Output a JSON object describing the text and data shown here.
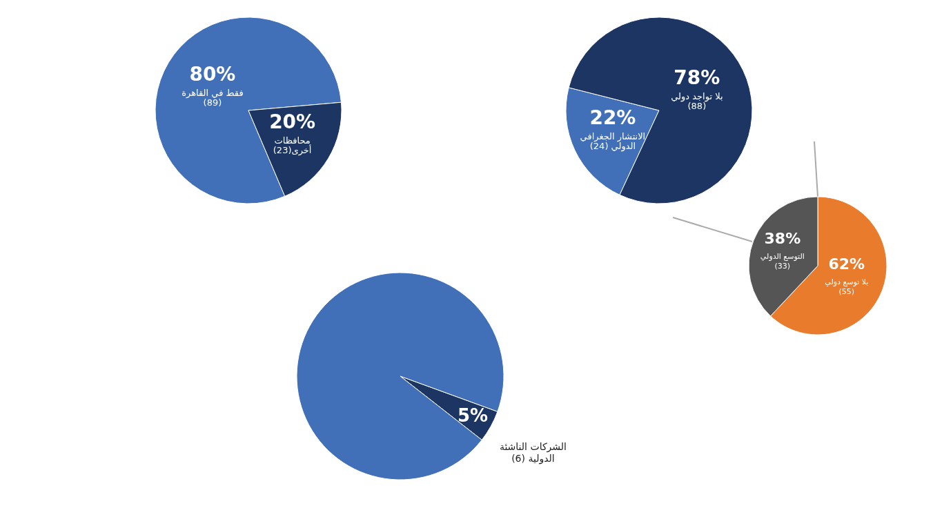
{
  "chart_data": [
    {
      "type": "pie",
      "categories": [
        "فقط في القاهرة (89)",
        "محافظات أخرى(23)"
      ],
      "values": [
        80,
        20
      ],
      "colors": [
        "#4170b8",
        "#1c3562"
      ],
      "value_labels": [
        "80%",
        "20%"
      ]
    },
    {
      "type": "pie",
      "categories": [
        "الانتشار الجغرافي الدولي (24)",
        "بلا تواجد دولي (88)"
      ],
      "values": [
        22,
        78
      ],
      "colors": [
        "#4170b8",
        "#1c3562"
      ],
      "value_labels": [
        "22%",
        "78%"
      ]
    },
    {
      "type": "pie",
      "categories": [
        "بلا توسع دولي (55)",
        "التوسع الدولي (33)"
      ],
      "values": [
        62,
        38
      ],
      "colors": [
        "#e97b2c",
        "#555555"
      ],
      "value_labels": [
        "62%",
        "38%"
      ]
    },
    {
      "type": "pie",
      "categories": [
        "الشركات الناشئة الدولية (6)",
        null
      ],
      "values": [
        5,
        95
      ],
      "colors": [
        "#1c3562",
        "#4170b8"
      ],
      "value_labels": [
        "5%",
        null
      ]
    }
  ]
}
